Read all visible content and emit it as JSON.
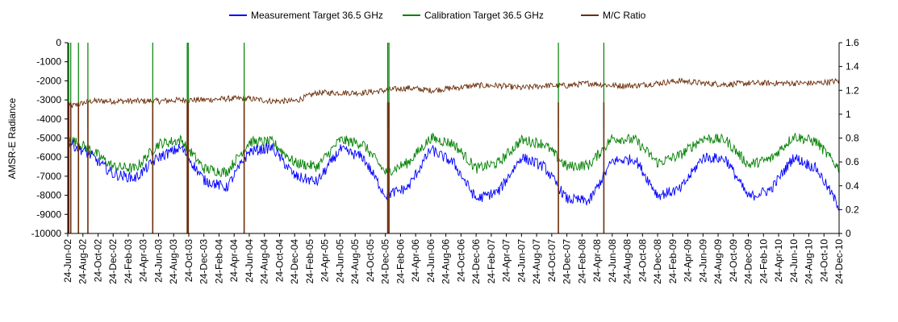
{
  "chart_data": {
    "type": "line",
    "title": "",
    "ylabel": "AMSR-E Radiance",
    "y2label": "",
    "xlabel": "",
    "ylim": [
      -10000,
      0
    ],
    "yticks": [
      "0",
      "-1000",
      "-2000",
      "-3000",
      "-4000",
      "-5000",
      "-6000",
      "-7000",
      "-8000",
      "-9000",
      "-10000"
    ],
    "y2lim": [
      0,
      1.6
    ],
    "y2ticks": [
      "0",
      "0.2",
      "0.4",
      "0.6",
      "0.8",
      "1",
      "1.2",
      "1.4",
      "1.6"
    ],
    "x_start_date": "2002-06-24",
    "x_end_date": "2010-12-24",
    "xticks": [
      "24-Jun-02",
      "24-Aug-02",
      "24-Oct-02",
      "24-Dec-02",
      "24-Feb-03",
      "24-Apr-03",
      "24-Jun-03",
      "24-Aug-03",
      "24-Oct-03",
      "24-Dec-03",
      "24-Feb-04",
      "24-Apr-04",
      "24-Jun-04",
      "24-Aug-04",
      "24-Oct-04",
      "24-Dec-04",
      "24-Feb-05",
      "24-Apr-05",
      "24-Jun-05",
      "24-Aug-05",
      "24-Oct-05",
      "24-Dec-05",
      "24-Feb-06",
      "24-Apr-06",
      "24-Jun-06",
      "24-Aug-06",
      "24-Oct-06",
      "24-Dec-06",
      "24-Feb-07",
      "24-Apr-07",
      "24-Jun-07",
      "24-Aug-07",
      "24-Oct-07",
      "24-Dec-07",
      "24-Feb-08",
      "24-Apr-08",
      "24-Jun-08",
      "24-Aug-08",
      "24-Oct-08",
      "24-Dec-08",
      "24-Feb-09",
      "24-Apr-09",
      "24-Jun-09",
      "24-Aug-09",
      "24-Oct-09",
      "24-Dec-09",
      "24-Feb-10",
      "24-Apr-10",
      "24-Jun-10",
      "24-Aug-10",
      "24-Oct-10",
      "24-Dec-10"
    ],
    "legend_position": "top",
    "grid": false,
    "series": [
      {
        "name": "Measurement Target 36.5 GHz",
        "axis": "left",
        "color": "#0000ff",
        "x": [
          "2002-06-24",
          "2002-09-24",
          "2002-12-24",
          "2003-03-24",
          "2003-06-24",
          "2003-09-24",
          "2003-12-24",
          "2004-03-24",
          "2004-06-24",
          "2004-09-24",
          "2004-12-24",
          "2005-03-24",
          "2005-06-24",
          "2005-09-24",
          "2005-12-24",
          "2006-03-24",
          "2006-06-24",
          "2006-09-24",
          "2006-12-24",
          "2007-03-24",
          "2007-06-24",
          "2007-09-24",
          "2007-12-24",
          "2008-03-24",
          "2008-06-24",
          "2008-09-24",
          "2008-12-24",
          "2009-03-24",
          "2009-06-24",
          "2009-09-24",
          "2009-12-24",
          "2010-03-24",
          "2010-06-24",
          "2010-09-24",
          "2010-12-24"
        ],
        "values": [
          -5200,
          -5900,
          -6900,
          -7100,
          -6000,
          -5500,
          -7200,
          -7600,
          -5700,
          -5500,
          -7000,
          -7300,
          -5600,
          -6000,
          -8000,
          -7600,
          -5600,
          -6300,
          -8200,
          -7800,
          -6000,
          -6500,
          -8200,
          -8300,
          -6200,
          -6100,
          -8000,
          -7700,
          -6000,
          -6100,
          -8100,
          -7700,
          -6000,
          -6600,
          -8600
        ]
      },
      {
        "name": "Calibration Target 36.5 GHz",
        "axis": "left",
        "color": "#008000",
        "x": [
          "2002-06-24",
          "2002-09-24",
          "2002-12-24",
          "2003-03-24",
          "2003-06-24",
          "2003-09-24",
          "2003-12-24",
          "2004-03-24",
          "2004-06-24",
          "2004-09-24",
          "2004-12-24",
          "2005-03-24",
          "2005-06-24",
          "2005-09-24",
          "2005-12-24",
          "2006-03-24",
          "2006-06-24",
          "2006-09-24",
          "2006-12-24",
          "2007-03-24",
          "2007-06-24",
          "2007-09-24",
          "2007-12-24",
          "2008-03-24",
          "2008-06-24",
          "2008-09-24",
          "2008-12-24",
          "2009-03-24",
          "2009-06-24",
          "2009-09-24",
          "2009-12-24",
          "2010-03-24",
          "2010-06-24",
          "2010-09-24",
          "2010-12-24"
        ],
        "values": [
          -5000,
          -5600,
          -6500,
          -6600,
          -5300,
          -5100,
          -6600,
          -6800,
          -5200,
          -5200,
          -6300,
          -6500,
          -5100,
          -5300,
          -6800,
          -6300,
          -5000,
          -5300,
          -6600,
          -6300,
          -5100,
          -5300,
          -6500,
          -6400,
          -5000,
          -5100,
          -6300,
          -5900,
          -5000,
          -5100,
          -6400,
          -6100,
          -4900,
          -5200,
          -6600
        ]
      },
      {
        "name": "M/C Ratio",
        "axis": "right",
        "color": "#6b2e0a",
        "x": [
          "2002-06-24",
          "2002-09-24",
          "2002-12-24",
          "2003-03-24",
          "2003-06-24",
          "2003-09-24",
          "2003-12-24",
          "2004-03-24",
          "2004-06-24",
          "2004-09-24",
          "2004-12-24",
          "2005-03-24",
          "2005-06-24",
          "2005-09-24",
          "2005-12-24",
          "2006-03-24",
          "2006-06-24",
          "2006-09-24",
          "2006-12-24",
          "2007-03-24",
          "2007-06-24",
          "2007-09-24",
          "2007-12-24",
          "2008-03-24",
          "2008-06-24",
          "2008-09-24",
          "2008-12-24",
          "2009-03-24",
          "2009-06-24",
          "2009-09-24",
          "2009-12-24",
          "2010-03-24",
          "2010-06-24",
          "2010-09-24",
          "2010-12-24"
        ],
        "values": [
          1.06,
          1.11,
          1.11,
          1.11,
          1.11,
          1.12,
          1.12,
          1.13,
          1.13,
          1.11,
          1.11,
          1.18,
          1.18,
          1.18,
          1.2,
          1.22,
          1.2,
          1.22,
          1.24,
          1.24,
          1.22,
          1.24,
          1.24,
          1.26,
          1.24,
          1.24,
          1.26,
          1.28,
          1.26,
          1.25,
          1.26,
          1.26,
          1.26,
          1.26,
          1.28
        ]
      }
    ],
    "spikes": [
      {
        "date": "2002-06-28",
        "ratio": 0,
        "calibration": 0
      },
      {
        "date": "2002-07-06",
        "ratio": 0,
        "calibration": 0
      },
      {
        "date": "2002-08-06",
        "ratio": 0,
        "calibration": 0
      },
      {
        "date": "2002-09-13",
        "ratio": 0,
        "calibration": 0
      },
      {
        "date": "2003-06-01",
        "ratio": 0,
        "calibration": 0
      },
      {
        "date": "2003-10-18",
        "ratio": 0,
        "calibration": 0
      },
      {
        "date": "2003-10-22",
        "ratio": 0,
        "calibration": 0
      },
      {
        "date": "2004-06-03",
        "ratio": 0,
        "calibration": 0
      },
      {
        "date": "2006-01-02",
        "ratio": 0,
        "calibration": 0
      },
      {
        "date": "2006-01-07",
        "ratio": 0,
        "calibration": 0
      },
      {
        "date": "2007-11-20",
        "ratio": 0,
        "calibration": 0
      },
      {
        "date": "2008-05-21",
        "ratio": 0,
        "calibration": 0
      }
    ]
  }
}
